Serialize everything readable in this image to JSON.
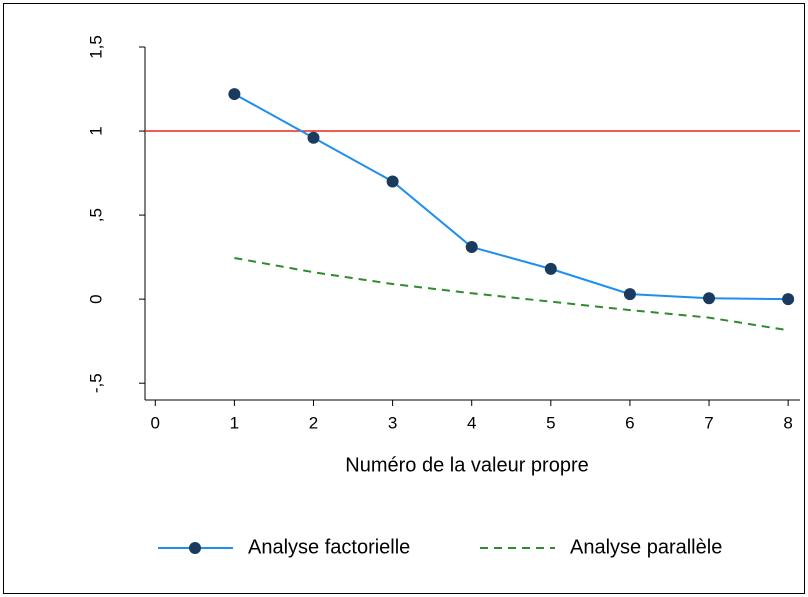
{
  "chart_data": {
    "type": "line",
    "xlabel": "Numéro de la valeur propre",
    "x": [
      1,
      2,
      3,
      4,
      5,
      6,
      7,
      8
    ],
    "series": [
      {
        "name": "Analyse factorielle",
        "color": "#1e8fef",
        "marker_color": "#1a3b5e",
        "marker": "circle",
        "dash": "solid",
        "values": [
          1.22,
          0.96,
          0.7,
          0.31,
          0.18,
          0.03,
          0.005,
          0.0
        ]
      },
      {
        "name": "Analyse parallèle",
        "color": "#2e8b2e",
        "marker": "none",
        "dash": "dashed",
        "values": [
          0.245,
          0.16,
          0.09,
          0.035,
          -0.015,
          -0.065,
          -0.11,
          -0.185
        ]
      }
    ],
    "reference_line": {
      "y": 1,
      "color": "#e8281f"
    },
    "xlim": [
      -0.13,
      8.15
    ],
    "ylim": [
      -0.6,
      1.5
    ],
    "xticks": [
      0,
      1,
      2,
      3,
      4,
      5,
      6,
      7,
      8
    ],
    "yticks": [
      {
        "value": -0.5,
        "label": "-,5"
      },
      0,
      {
        "value": 0.5,
        "label": ",5"
      },
      1,
      {
        "value": 1.5,
        "label": "1,5"
      }
    ],
    "legend": "bottom"
  }
}
